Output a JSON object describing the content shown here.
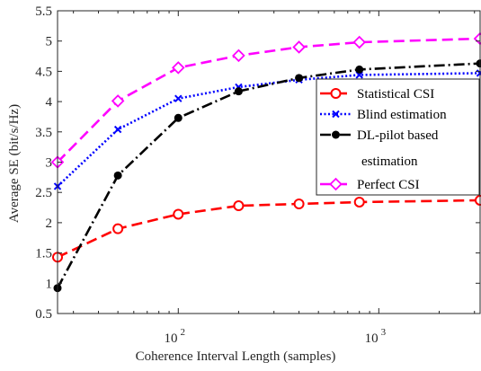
{
  "chart_data": {
    "type": "line",
    "xlabel": "Coherence Interval Length (samples)",
    "ylabel": "Average SE (bit/s/Hz)",
    "xscale": "log",
    "xlim": [
      25,
      3200
    ],
    "ylim": [
      0.5,
      5.5
    ],
    "grid": false,
    "legend_position": "right",
    "x": [
      25,
      50,
      100,
      200,
      400,
      800,
      3200
    ],
    "x_ticks": [
      {
        "value": 100,
        "base": "10",
        "exp": "2"
      },
      {
        "value": 1000,
        "base": "10",
        "exp": "3"
      }
    ],
    "y_ticks": [
      {
        "value": 0.5,
        "label": "0.5"
      },
      {
        "value": 1,
        "label": "1"
      },
      {
        "value": 1.5,
        "label": "1.5"
      },
      {
        "value": 2,
        "label": "2"
      },
      {
        "value": 2.5,
        "label": "2.5"
      },
      {
        "value": 3,
        "label": "3"
      },
      {
        "value": 3.5,
        "label": "3.5"
      },
      {
        "value": 4,
        "label": "4"
      },
      {
        "value": 4.5,
        "label": "4.5"
      },
      {
        "value": 5,
        "label": "5"
      },
      {
        "value": 5.5,
        "label": "5.5"
      }
    ],
    "series": [
      {
        "name": "Statistical CSI",
        "color": "#ff0000",
        "line": "dashed",
        "marker": "circle",
        "values": [
          1.43,
          1.9,
          2.14,
          2.28,
          2.31,
          2.34,
          2.37
        ]
      },
      {
        "name": "Blind estimation",
        "color": "#0000ff",
        "line": "dotted",
        "marker": "x",
        "values": [
          2.6,
          3.54,
          4.05,
          4.24,
          4.36,
          4.44,
          4.47
        ]
      },
      {
        "name": "DL-pilot based estimation",
        "name_lines": [
          "DL-pilot based",
          "estimation"
        ],
        "color": "#000000",
        "line": "dashdot",
        "marker": "dot",
        "values": [
          0.92,
          2.78,
          3.73,
          4.17,
          4.39,
          4.53,
          4.63
        ]
      },
      {
        "name": "Perfect CSI",
        "color": "#ff00ff",
        "line": "dashed",
        "marker": "diamond",
        "values": [
          3.0,
          4.01,
          4.56,
          4.76,
          4.9,
          4.98,
          5.04
        ]
      }
    ]
  }
}
